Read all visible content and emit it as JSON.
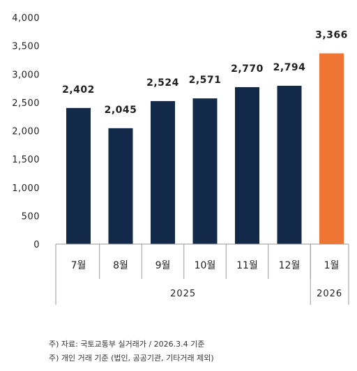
{
  "chart_data": {
    "type": "bar",
    "categories": [
      "7월",
      "8월",
      "9월",
      "10월",
      "11월",
      "12월",
      "1월"
    ],
    "values": [
      2402,
      2045,
      2524,
      2571,
      2770,
      2794,
      3366
    ],
    "data_labels": [
      "2,402",
      "2,045",
      "2,524",
      "2,571",
      "2,770",
      "2,794",
      "3,366"
    ],
    "bar_colors": [
      "#12294a",
      "#12294a",
      "#12294a",
      "#12294a",
      "#12294a",
      "#12294a",
      "#ee7533"
    ],
    "ylim": [
      0,
      4000
    ],
    "yticks": [
      "0",
      "500",
      "1,000",
      "1,500",
      "2,000",
      "2,500",
      "3,000",
      "3,500",
      "4,000"
    ],
    "year_groups": [
      {
        "label": "2025",
        "span": [
          0,
          5
        ]
      },
      {
        "label": "2026",
        "span": [
          6,
          6
        ]
      }
    ],
    "grid": false,
    "legend": "none"
  },
  "notes": [
    "주) 자료: 국토교통부 실거래가 / 2026.3.4 기준",
    "주) 개인 거래 기준 (법인, 공공기관, 기타거래 제외)"
  ]
}
